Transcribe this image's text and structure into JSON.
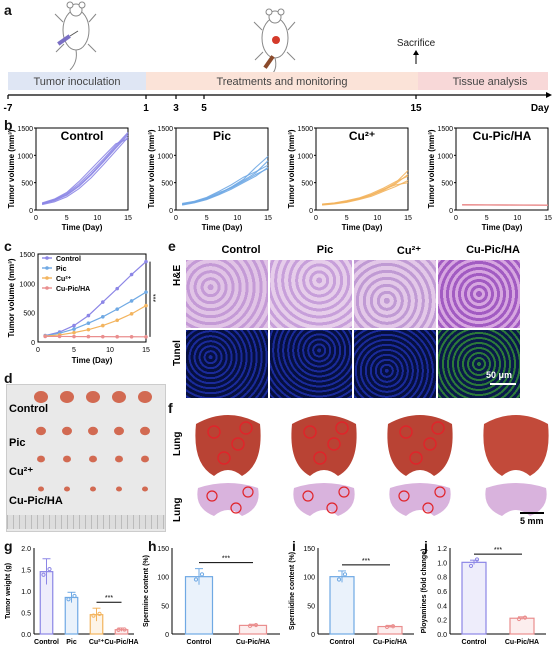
{
  "panel_letters": {
    "a": "a",
    "b": "b",
    "c": "c",
    "d": "d",
    "e": "e",
    "f": "f",
    "g": "g",
    "h": "h",
    "i": "i",
    "j": "j"
  },
  "timeline": {
    "phases": [
      "Tumor inoculation",
      "Treatments and monitoring",
      "Tissue analysis"
    ],
    "ticks": [
      "-7",
      "1",
      "3",
      "5",
      "15"
    ],
    "day_label": "Day",
    "sacrifice_label": "Sacrifice",
    "colors": {
      "phase1": "#dfe6f4",
      "phase2": "#fbe3d8",
      "phase3": "#f8d8d8"
    }
  },
  "panel_b": {
    "y_label": "Tumor volume (mm³)",
    "x_label": "Time (Day)",
    "x_ticks": [
      "0",
      "5",
      "10",
      "15"
    ],
    "y_ticks": [
      "0",
      "500",
      "1000",
      "1500"
    ],
    "titles": [
      "Control",
      "Pic",
      "Cu²⁺",
      "Cu-Pic/HA"
    ]
  },
  "panel_c": {
    "y_label": "Tumor volume (mm³)",
    "x_label": "Time (Day)",
    "legend": [
      "Control",
      "Pic",
      "Cu²⁺",
      "Cu-Pic/HA"
    ],
    "sig": "***",
    "y_ticks": [
      "0",
      "500",
      "1000",
      "1500"
    ],
    "x_ticks": [
      "0",
      "5",
      "10",
      "15"
    ]
  },
  "panel_d": {
    "labels": [
      "Control",
      "Pic",
      "Cu²⁺",
      "Cu-Pic/HA"
    ]
  },
  "panel_e": {
    "cols": [
      "Control",
      "Pic",
      "Cu²⁺",
      "Cu-Pic/HA"
    ],
    "rows": [
      "H&E",
      "Tunel"
    ],
    "scale": "50 μm"
  },
  "panel_f": {
    "rows": [
      "Lung",
      "Lung"
    ],
    "scale": "5 mm"
  },
  "panel_g": {
    "y_label": "Tumor weight (g)",
    "categories": [
      "Control",
      "Pic",
      "Cu²⁺",
      "Cu-Pic/HA"
    ],
    "sig": "***",
    "y_ticks": [
      "0.0",
      "0.5",
      "1.0",
      "1.5",
      "2.0"
    ]
  },
  "panel_h": {
    "y_label": "Spermine content (%)",
    "categories": [
      "Control",
      "Cu-Pic/HA"
    ],
    "sig": "***",
    "y_ticks": [
      "0",
      "50",
      "100",
      "150"
    ]
  },
  "panel_i": {
    "y_label": "Spermidine content (%)",
    "categories": [
      "Control",
      "Cu-Pic/HA"
    ],
    "sig": "***",
    "y_ticks": [
      "0",
      "50",
      "100",
      "150"
    ]
  },
  "panel_j": {
    "y_label": "Ployamines (fold change)",
    "categories": [
      "Control",
      "Cu-Pic/HA"
    ],
    "sig": "***",
    "y_ticks": [
      "0.0",
      "0.2",
      "0.4",
      "0.6",
      "0.8",
      "1.0",
      "1.2"
    ]
  },
  "colors": {
    "control": "#8c86e6",
    "pic": "#6fa9e4",
    "cu": "#f3b45e",
    "cupic": "#ea8e8e"
  },
  "chart_data": [
    {
      "type": "line",
      "title": "Control",
      "xlabel": "Time (Day)",
      "ylabel": "Tumor volume (mm³)",
      "xlim": [
        0,
        15
      ],
      "ylim": [
        0,
        1500
      ],
      "x": [
        1,
        3,
        5,
        7,
        9,
        11,
        13,
        15
      ],
      "series": [
        {
          "values": [
            110,
            170,
            270,
            430,
            640,
            880,
            1130,
            1370
          ]
        },
        {
          "values": [
            120,
            190,
            300,
            480,
            700,
            930,
            1180,
            1420
          ]
        },
        {
          "values": [
            100,
            150,
            240,
            390,
            590,
            830,
            1080,
            1330
          ]
        },
        {
          "values": [
            130,
            200,
            320,
            520,
            750,
            980,
            1210,
            1300
          ]
        },
        {
          "values": [
            115,
            180,
            280,
            450,
            660,
            900,
            1150,
            1400
          ]
        }
      ]
    },
    {
      "type": "line",
      "title": "Pic",
      "xlabel": "Time (Day)",
      "ylabel": "Tumor volume (mm³)",
      "xlim": [
        0,
        15
      ],
      "ylim": [
        0,
        1500
      ],
      "x": [
        1,
        3,
        5,
        7,
        9,
        11,
        13,
        15
      ],
      "series": [
        {
          "values": [
            100,
            140,
            210,
            300,
            420,
            560,
            780,
            980
          ]
        },
        {
          "values": [
            110,
            150,
            220,
            320,
            400,
            520,
            650,
            760
          ]
        },
        {
          "values": [
            90,
            130,
            190,
            280,
            380,
            500,
            620,
            780
          ]
        },
        {
          "values": [
            120,
            160,
            230,
            340,
            460,
            600,
            700,
            820
          ]
        },
        {
          "values": [
            105,
            145,
            200,
            290,
            410,
            540,
            680,
            900
          ]
        }
      ]
    },
    {
      "type": "line",
      "title": "Cu²⁺",
      "xlabel": "Time (Day)",
      "ylabel": "Tumor volume (mm³)",
      "xlim": [
        0,
        15
      ],
      "ylim": [
        0,
        1500
      ],
      "x": [
        1,
        3,
        5,
        7,
        9,
        11,
        13,
        15
      ],
      "series": [
        {
          "values": [
            100,
            120,
            150,
            200,
            270,
            370,
            500,
            720
          ]
        },
        {
          "values": [
            110,
            130,
            170,
            220,
            300,
            400,
            520,
            620
          ]
        },
        {
          "values": [
            90,
            110,
            140,
            190,
            250,
            340,
            430,
            540
          ]
        },
        {
          "values": [
            105,
            125,
            160,
            210,
            280,
            380,
            460,
            500
          ]
        },
        {
          "values": [
            100,
            120,
            155,
            205,
            275,
            360,
            480,
            650
          ]
        }
      ]
    },
    {
      "type": "line",
      "title": "Cu-Pic/HA",
      "xlabel": "Time (Day)",
      "ylabel": "Tumor volume (mm³)",
      "xlim": [
        0,
        15
      ],
      "ylim": [
        0,
        1500
      ],
      "x": [
        1,
        3,
        5,
        7,
        9,
        11,
        13,
        15
      ],
      "series": [
        {
          "values": [
            100,
            98,
            96,
            95,
            94,
            93,
            92,
            90
          ]
        },
        {
          "values": [
            95,
            94,
            93,
            92,
            91,
            90,
            89,
            88
          ]
        },
        {
          "values": [
            90,
            90,
            89,
            88,
            88,
            87,
            86,
            85
          ]
        }
      ]
    },
    {
      "type": "line",
      "xlabel": "Time (Day)",
      "ylabel": "Tumor volume (mm³)",
      "xlim": [
        0,
        15
      ],
      "ylim": [
        0,
        1500
      ],
      "x": [
        1,
        3,
        5,
        7,
        9,
        11,
        13,
        15
      ],
      "series": [
        {
          "name": "Control",
          "values": [
            110,
            170,
            280,
            450,
            680,
            910,
            1150,
            1370
          ]
        },
        {
          "name": "Pic",
          "values": [
            105,
            150,
            220,
            320,
            430,
            560,
            700,
            850
          ]
        },
        {
          "name": "Cu²⁺",
          "values": [
            100,
            120,
            160,
            210,
            280,
            370,
            480,
            620
          ]
        },
        {
          "name": "Cu-Pic/HA",
          "values": [
            95,
            95,
            93,
            92,
            91,
            90,
            89,
            88
          ]
        }
      ]
    },
    {
      "type": "bar",
      "ylabel": "Tumor weight (g)",
      "categories": [
        "Control",
        "Pic",
        "Cu²⁺",
        "Cu-Pic/HA"
      ],
      "values": [
        1.45,
        0.85,
        0.45,
        0.1
      ],
      "errors": [
        0.3,
        0.12,
        0.15,
        0.04
      ],
      "ylim": [
        0,
        2.0
      ]
    },
    {
      "type": "bar",
      "ylabel": "Spermine content (%)",
      "categories": [
        "Control",
        "Cu-Pic/HA"
      ],
      "values": [
        100,
        15
      ],
      "errors": [
        14,
        2
      ],
      "ylim": [
        0,
        150
      ]
    },
    {
      "type": "bar",
      "ylabel": "Spermidine content (%)",
      "categories": [
        "Control",
        "Cu-Pic/HA"
      ],
      "values": [
        100,
        13
      ],
      "errors": [
        10,
        2
      ],
      "ylim": [
        0,
        150
      ]
    },
    {
      "type": "bar",
      "ylabel": "Ployamines (fold change)",
      "categories": [
        "Control",
        "Cu-Pic/HA"
      ],
      "values": [
        1.0,
        0.22
      ],
      "errors": [
        0.03,
        0.02
      ],
      "ylim": [
        0,
        1.2
      ]
    }
  ]
}
